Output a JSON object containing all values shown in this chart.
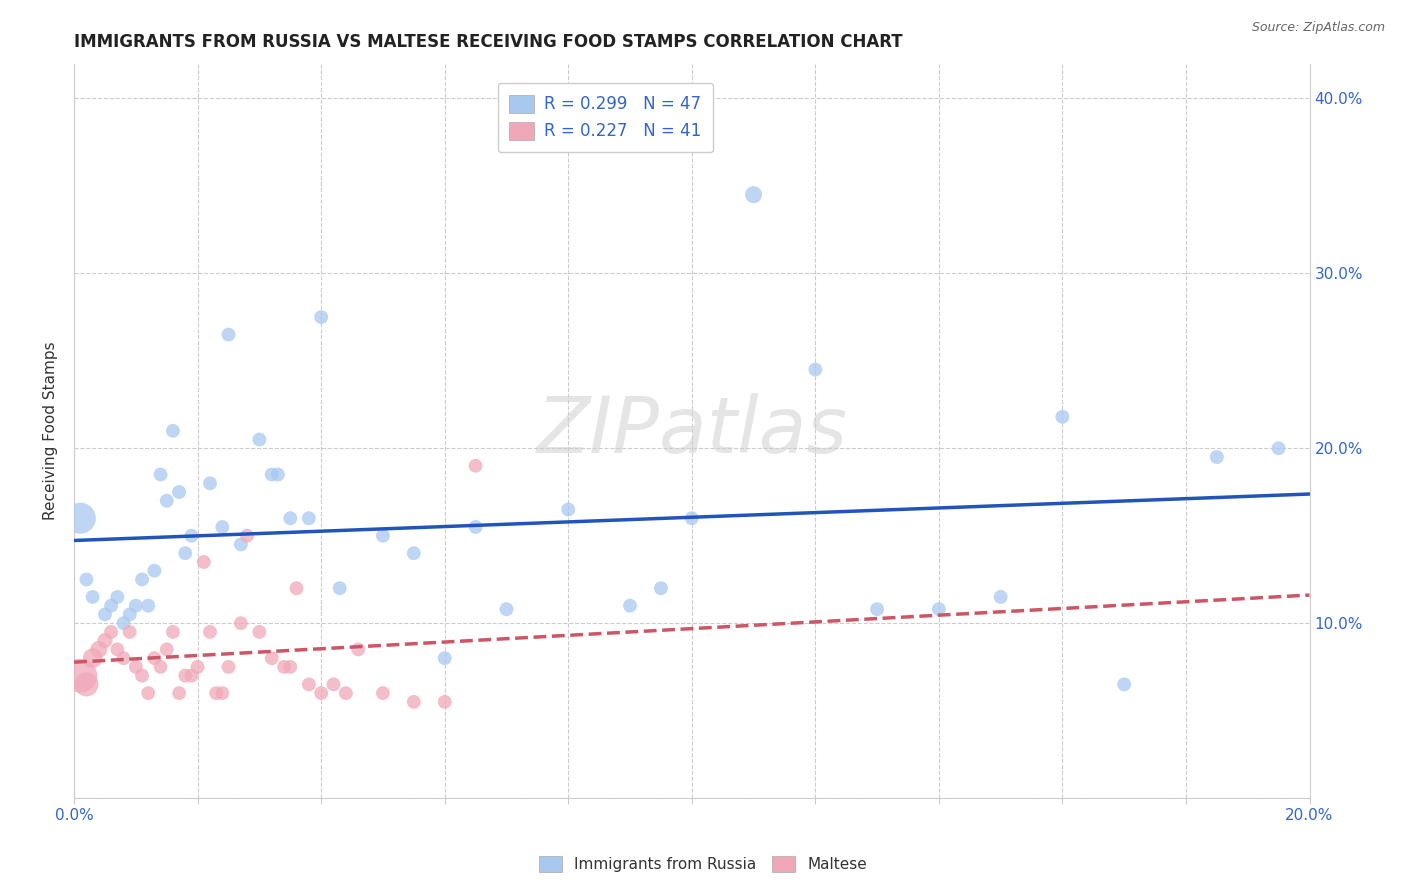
{
  "title": "IMMIGRANTS FROM RUSSIA VS MALTESE RECEIVING FOOD STAMPS CORRELATION CHART",
  "source": "Source: ZipAtlas.com",
  "ylabel": "Receiving Food Stamps",
  "xlim": [
    0.0,
    0.2
  ],
  "ylim": [
    0.0,
    0.42
  ],
  "R_russia": 0.299,
  "N_russia": 47,
  "R_maltese": 0.227,
  "N_maltese": 41,
  "russia_color": "#a8c8f0",
  "maltese_color": "#f0a8b8",
  "russia_line_color": "#2255bb",
  "maltese_line_color": "#cc5566",
  "legend_label_russia": "Immigrants from Russia",
  "legend_label_maltese": "Maltese",
  "russia_x": [
    0.001,
    0.002,
    0.003,
    0.005,
    0.006,
    0.007,
    0.008,
    0.009,
    0.01,
    0.011,
    0.012,
    0.013,
    0.014,
    0.015,
    0.016,
    0.017,
    0.018,
    0.019,
    0.022,
    0.024,
    0.025,
    0.027,
    0.03,
    0.032,
    0.033,
    0.035,
    0.038,
    0.04,
    0.043,
    0.05,
    0.055,
    0.06,
    0.065,
    0.07,
    0.08,
    0.09,
    0.095,
    0.1,
    0.11,
    0.12,
    0.13,
    0.14,
    0.15,
    0.16,
    0.17,
    0.185,
    0.195
  ],
  "russia_y": [
    0.16,
    0.125,
    0.115,
    0.105,
    0.11,
    0.115,
    0.1,
    0.105,
    0.11,
    0.125,
    0.11,
    0.13,
    0.185,
    0.17,
    0.21,
    0.175,
    0.14,
    0.15,
    0.18,
    0.155,
    0.265,
    0.145,
    0.205,
    0.185,
    0.185,
    0.16,
    0.16,
    0.275,
    0.12,
    0.15,
    0.14,
    0.08,
    0.155,
    0.108,
    0.165,
    0.11,
    0.12,
    0.16,
    0.345,
    0.245,
    0.108,
    0.108,
    0.115,
    0.218,
    0.065,
    0.195,
    0.2
  ],
  "russia_size": [
    500,
    100,
    100,
    100,
    100,
    100,
    100,
    100,
    100,
    100,
    100,
    100,
    100,
    100,
    100,
    100,
    100,
    100,
    100,
    100,
    100,
    100,
    100,
    100,
    100,
    100,
    100,
    100,
    100,
    100,
    100,
    100,
    100,
    100,
    100,
    100,
    100,
    100,
    150,
    100,
    100,
    100,
    100,
    100,
    100,
    100,
    100
  ],
  "maltese_x": [
    0.001,
    0.002,
    0.003,
    0.004,
    0.005,
    0.006,
    0.007,
    0.008,
    0.009,
    0.01,
    0.011,
    0.012,
    0.013,
    0.014,
    0.015,
    0.016,
    0.017,
    0.018,
    0.019,
    0.02,
    0.021,
    0.022,
    0.023,
    0.024,
    0.025,
    0.027,
    0.028,
    0.03,
    0.032,
    0.034,
    0.035,
    0.036,
    0.038,
    0.04,
    0.042,
    0.044,
    0.046,
    0.05,
    0.055,
    0.06,
    0.065
  ],
  "maltese_y": [
    0.07,
    0.065,
    0.08,
    0.085,
    0.09,
    0.095,
    0.085,
    0.08,
    0.095,
    0.075,
    0.07,
    0.06,
    0.08,
    0.075,
    0.085,
    0.095,
    0.06,
    0.07,
    0.07,
    0.075,
    0.135,
    0.095,
    0.06,
    0.06,
    0.075,
    0.1,
    0.15,
    0.095,
    0.08,
    0.075,
    0.075,
    0.12,
    0.065,
    0.06,
    0.065,
    0.06,
    0.085,
    0.06,
    0.055,
    0.055,
    0.19
  ],
  "maltese_size": [
    600,
    300,
    200,
    150,
    120,
    100,
    100,
    100,
    100,
    100,
    100,
    100,
    100,
    100,
    100,
    100,
    100,
    100,
    100,
    100,
    100,
    100,
    100,
    100,
    100,
    100,
    100,
    100,
    100,
    100,
    100,
    100,
    100,
    100,
    100,
    100,
    100,
    100,
    100,
    100,
    100
  ],
  "russia_trend": [
    0.118,
    0.2
  ],
  "maltese_trend": [
    0.07,
    0.13
  ],
  "watermark": "ZIPatlas",
  "background_color": "#ffffff",
  "grid_color": "#cccccc"
}
